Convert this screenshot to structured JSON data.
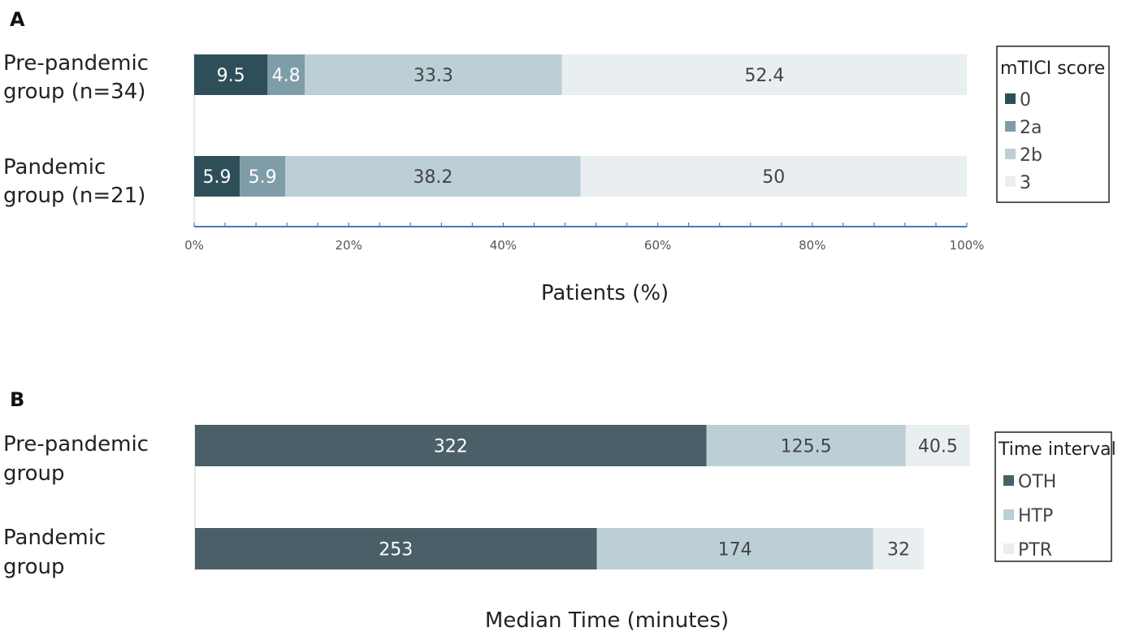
{
  "chart_data": [
    {
      "panel_label": "A",
      "type": "bar",
      "orientation": "horizontal",
      "stacked": true,
      "categories": [
        "Pre-pandemic group (n=34)",
        "Pandemic group (n=21)"
      ],
      "category_lines": [
        [
          "Pre-pandemic",
          "group (n=34)"
        ],
        [
          "Pandemic",
          "group (n=21)"
        ]
      ],
      "series": [
        {
          "name": "0",
          "values": [
            9.5,
            5.9
          ],
          "labels": [
            "9.5",
            "5.9"
          ],
          "color": "#2e4f5a",
          "label_color": "#ffffff"
        },
        {
          "name": "2a",
          "values": [
            4.8,
            5.9
          ],
          "labels": [
            "4.8",
            "5.9"
          ],
          "color": "#7f9da8",
          "label_color": "#ffffff"
        },
        {
          "name": "2b",
          "values": [
            33.3,
            38.2
          ],
          "labels": [
            "33.3",
            "38.2"
          ],
          "color": "#bccfd6",
          "label_color": "#444444"
        },
        {
          "name": "3",
          "values": [
            52.4,
            50
          ],
          "labels": [
            "52.4",
            "50"
          ],
          "color": "#e9eef1",
          "label_color": "#444444"
        }
      ],
      "xlabel": "Patients (%)",
      "xlim": [
        0,
        100
      ],
      "xticks": [
        0,
        20,
        40,
        60,
        80,
        100
      ],
      "xtick_labels": [
        "0%",
        "20%",
        "40%",
        "60%",
        "80%",
        "100%"
      ],
      "legend_title": "mTICI score",
      "legend_position": "right",
      "axis_color": "#4a78c2"
    },
    {
      "panel_label": "B",
      "type": "bar",
      "orientation": "horizontal",
      "stacked": true,
      "categories": [
        "Pre-pandemic group",
        "Pandemic group"
      ],
      "category_lines": [
        [
          "Pre-pandemic",
          "group"
        ],
        [
          "Pandemic",
          "group"
        ]
      ],
      "series": [
        {
          "name": "OTH",
          "values": [
            322,
            253
          ],
          "labels": [
            "322",
            "253"
          ],
          "color": "#4b5f69",
          "label_color": "#ffffff"
        },
        {
          "name": "HTP",
          "values": [
            125.5,
            174
          ],
          "labels": [
            "125.5",
            "174"
          ],
          "color": "#bccfd6",
          "label_color": "#444444"
        },
        {
          "name": "PTR",
          "values": [
            40.5,
            32
          ],
          "labels": [
            "40.5",
            "32"
          ],
          "color": "#e9eef1",
          "label_color": "#444444"
        }
      ],
      "xlabel": "Median Time (minutes)",
      "xlim": [
        0,
        488
      ],
      "legend_title": "Time interval",
      "legend_position": "right"
    }
  ]
}
